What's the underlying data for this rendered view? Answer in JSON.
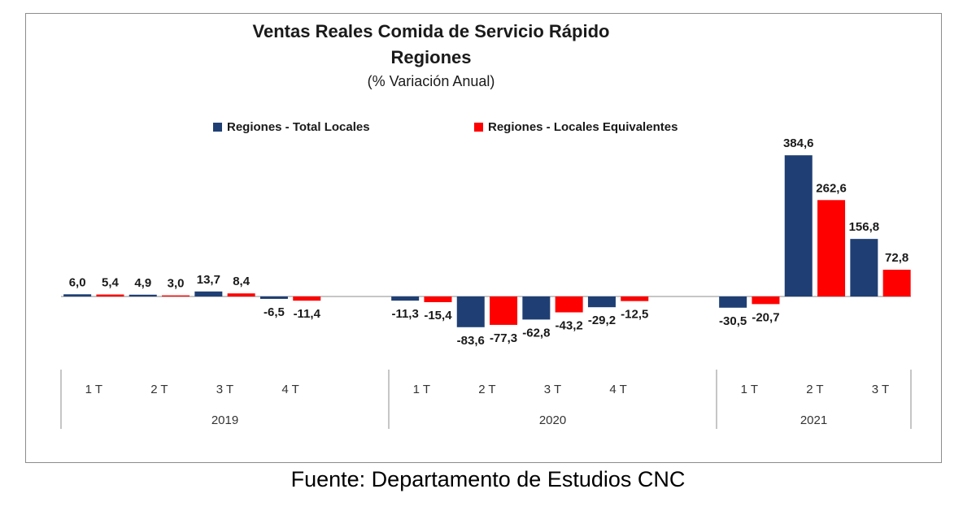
{
  "chart_data": {
    "type": "bar",
    "title": "Ventas Reales Comida de Servicio Rápido",
    "subtitle_line": "Regiones",
    "subtitle": "(% Variación Anual)",
    "categories": [
      "1 T",
      "2 T",
      "3 T",
      "4 T",
      "1 T",
      "2 T",
      "3 T",
      "4 T",
      "1 T",
      "2 T",
      "3 T"
    ],
    "groups": [
      {
        "label": "2019",
        "count": 4
      },
      {
        "label": "2020",
        "count": 4
      },
      {
        "label": "2021",
        "count": 3
      }
    ],
    "series": [
      {
        "name": "Regiones - Total Locales",
        "color": "#1f3f74",
        "values": [
          6.0,
          4.9,
          13.7,
          -6.5,
          -11.3,
          -83.6,
          -62.8,
          -29.2,
          -30.5,
          384.6,
          156.8
        ],
        "labels": [
          "6,0",
          "4,9",
          "13,7",
          "-6,5",
          "-11,3",
          "-83,6",
          "-62,8",
          "-29,2",
          "-30,5",
          "384,6",
          "156,8"
        ]
      },
      {
        "name": "Regiones - Locales Equivalentes",
        "color": "#ff0000",
        "values": [
          5.4,
          3.0,
          8.4,
          -11.4,
          -15.4,
          -77.3,
          -43.2,
          -12.5,
          -20.7,
          262.6,
          72.8
        ],
        "labels": [
          "5,4",
          "3,0",
          "8,4",
          "-11,4",
          "-15,4",
          "-77,3",
          "-43,2",
          "-12,5",
          "-20,7",
          "262,6",
          "72,8"
        ]
      }
    ],
    "legend_position": "top",
    "grid": false
  },
  "source": "Fuente: Departamento de Estudios CNC"
}
